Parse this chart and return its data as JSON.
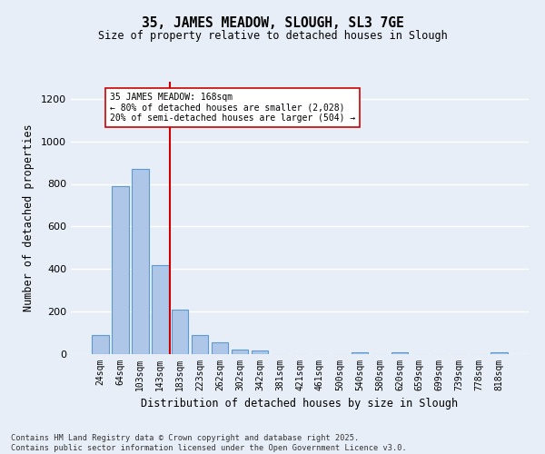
{
  "title": "35, JAMES MEADOW, SLOUGH, SL3 7GE",
  "subtitle": "Size of property relative to detached houses in Slough",
  "xlabel": "Distribution of detached houses by size in Slough",
  "ylabel": "Number of detached properties",
  "categories": [
    "24sqm",
    "64sqm",
    "103sqm",
    "143sqm",
    "183sqm",
    "223sqm",
    "262sqm",
    "302sqm",
    "342sqm",
    "381sqm",
    "421sqm",
    "461sqm",
    "500sqm",
    "540sqm",
    "580sqm",
    "620sqm",
    "659sqm",
    "699sqm",
    "739sqm",
    "778sqm",
    "818sqm"
  ],
  "values": [
    90,
    790,
    870,
    420,
    207,
    90,
    55,
    22,
    17,
    0,
    0,
    0,
    0,
    10,
    0,
    10,
    0,
    0,
    0,
    0,
    10
  ],
  "bar_color": "#aec6e8",
  "bar_edgecolor": "#5b9bd5",
  "background_color": "#e8eef7",
  "grid_color": "#ffffff",
  "annotation_line_color": "#cc0000",
  "annotation_text_line1": "35 JAMES MEADOW: 168sqm",
  "annotation_text_line2": "← 80% of detached houses are smaller (2,028)",
  "annotation_text_line3": "20% of semi-detached houses are larger (504) →",
  "annotation_box_color": "#ffffff",
  "annotation_box_edgecolor": "#cc0000",
  "ylim": [
    0,
    1280
  ],
  "yticks": [
    0,
    200,
    400,
    600,
    800,
    1000,
    1200
  ],
  "footer_line1": "Contains HM Land Registry data © Crown copyright and database right 2025.",
  "footer_line2": "Contains public sector information licensed under the Open Government Licence v3.0."
}
